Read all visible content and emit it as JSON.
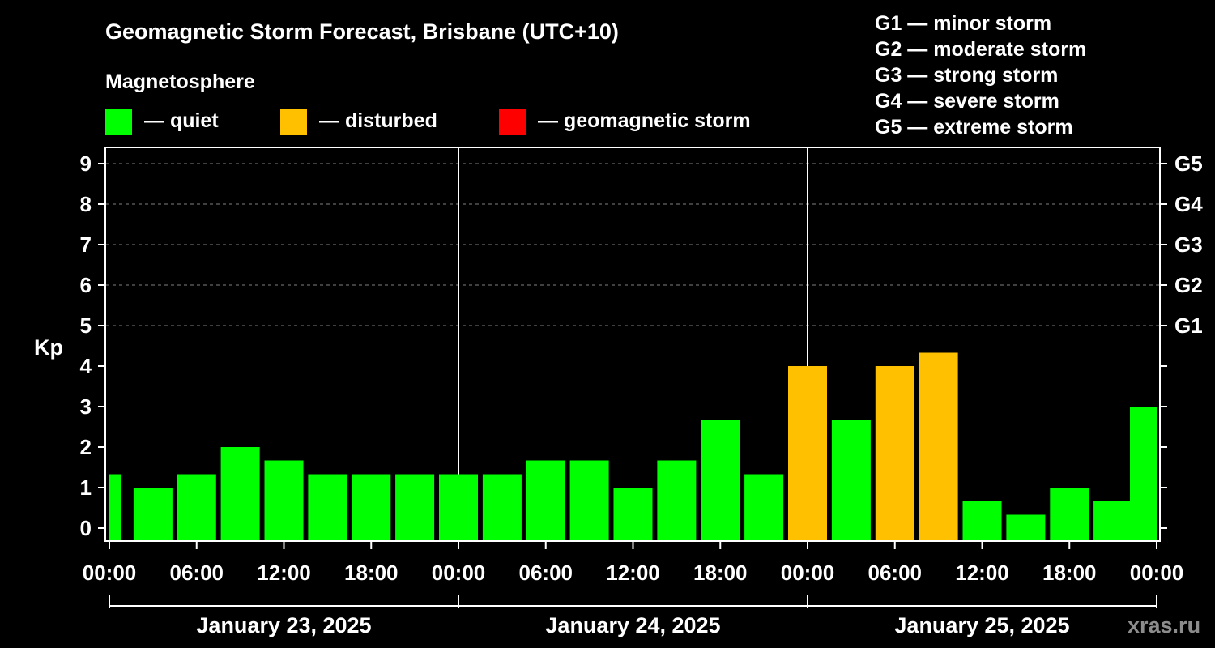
{
  "chart_data": {
    "type": "bar",
    "title": "Geomagnetic Storm Forecast, Brisbane (UTC+10)",
    "ylabel": "Kp",
    "ylim": [
      0,
      9
    ],
    "y_ticks": [
      "0",
      "1",
      "2",
      "3",
      "4",
      "5",
      "6",
      "7",
      "8",
      "9"
    ],
    "x_tick_labels": [
      "00:00",
      "06:00",
      "12:00",
      "18:00",
      "00:00",
      "06:00",
      "12:00",
      "18:00",
      "00:00",
      "06:00",
      "12:00",
      "18:00",
      "00:00"
    ],
    "days": [
      "January 23, 2025",
      "January 24, 2025",
      "January 25, 2025"
    ],
    "storm_levels": [
      {
        "label": "G1",
        "kp": 5
      },
      {
        "label": "G2",
        "kp": 6
      },
      {
        "label": "G3",
        "kp": 7
      },
      {
        "label": "G4",
        "kp": 8
      },
      {
        "label": "G5",
        "kp": 9
      }
    ],
    "legend": {
      "heading": "Magnetosphere",
      "items": [
        {
          "label": "— quiet",
          "color": "#00FF00"
        },
        {
          "label": "— disturbed",
          "color": "#FFC000"
        },
        {
          "label": "— geomagnetic storm",
          "color": "#FF0000"
        }
      ],
      "storm_scale": [
        "G1 — minor storm",
        "G2 — moderate storm",
        "G3 — strong storm",
        "G4 — severe storm",
        "G5 — extreme storm"
      ]
    },
    "series": [
      {
        "name": "Kp",
        "values": [
          1.33,
          1.0,
          1.33,
          2.0,
          1.67,
          1.33,
          1.33,
          1.33,
          1.33,
          1.33,
          1.67,
          1.67,
          1.0,
          1.67,
          2.67,
          1.33,
          4.0,
          2.67,
          4.0,
          4.33,
          0.67,
          0.33,
          1.0,
          0.67,
          3.0
        ],
        "status": [
          "quiet",
          "quiet",
          "quiet",
          "quiet",
          "quiet",
          "quiet",
          "quiet",
          "quiet",
          "quiet",
          "quiet",
          "quiet",
          "quiet",
          "quiet",
          "quiet",
          "quiet",
          "quiet",
          "disturbed",
          "quiet",
          "disturbed",
          "disturbed",
          "quiet",
          "quiet",
          "quiet",
          "quiet",
          "quiet"
        ]
      }
    ],
    "watermark": "xras.ru"
  }
}
